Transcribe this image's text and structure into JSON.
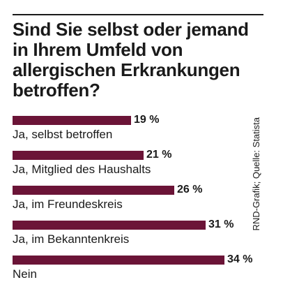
{
  "title": "Sind Sie selbst oder jemand in Ihrem Umfeld von allergischen Erkrankungen betroffen?",
  "source": "RND-Grafik; Quelle: Statista",
  "colors": {
    "bar": "#6b1437"
  },
  "chart_data": {
    "type": "bar",
    "orientation": "horizontal",
    "title": "Sind Sie selbst oder jemand in Ihrem Umfeld von allergischen Erkrankungen betroffen?",
    "categories": [
      "Ja, selbst betroffen",
      "Ja, Mitglied des Haushalts",
      "Ja, im Freundeskreis",
      "Ja, im Bekanntenkreis",
      "Nein"
    ],
    "values": [
      19,
      21,
      26,
      31,
      34
    ],
    "value_labels": [
      "19 %",
      "21 %",
      "26 %",
      "31 %",
      "34 %"
    ],
    "unit": "%",
    "xlim": [
      0,
      34
    ],
    "grid": false,
    "legend": "none"
  }
}
